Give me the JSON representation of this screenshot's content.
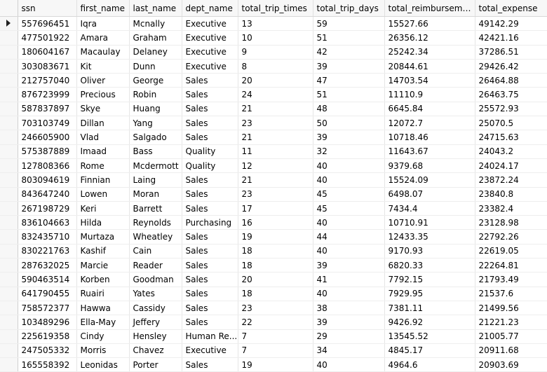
{
  "columns": [
    "ssn",
    "first_name",
    "last_name",
    "dept_name",
    "total_trip_times",
    "total_trip_days",
    "total_reimbursement",
    "total_expense"
  ],
  "selected_row_index": 0,
  "rows": [
    [
      "557696451",
      "Iqra",
      "Mcnally",
      "Executive",
      "13",
      "59",
      "15527.66",
      "49142.29"
    ],
    [
      "477501922",
      "Amara",
      "Graham",
      "Executive",
      "10",
      "51",
      "26356.12",
      "42421.16"
    ],
    [
      "180604167",
      "Macaulay",
      "Delaney",
      "Executive",
      "9",
      "42",
      "25242.34",
      "37286.51"
    ],
    [
      "303083671",
      "Kit",
      "Dunn",
      "Executive",
      "8",
      "39",
      "20844.61",
      "29426.42"
    ],
    [
      "212757040",
      "Oliver",
      "George",
      "Sales",
      "20",
      "47",
      "14703.54",
      "26464.88"
    ],
    [
      "876723999",
      "Precious",
      "Robin",
      "Sales",
      "24",
      "51",
      "11110.9",
      "26463.75"
    ],
    [
      "587837897",
      "Skye",
      "Huang",
      "Sales",
      "21",
      "48",
      "6645.84",
      "25572.93"
    ],
    [
      "703103749",
      "Dillan",
      "Yang",
      "Sales",
      "23",
      "50",
      "12072.7",
      "25070.5"
    ],
    [
      "246605900",
      "Vlad",
      "Salgado",
      "Sales",
      "21",
      "39",
      "10718.46",
      "24715.63"
    ],
    [
      "575387889",
      "Imaad",
      "Bass",
      "Quality",
      "11",
      "32",
      "11643.67",
      "24043.2"
    ],
    [
      "127808366",
      "Rome",
      "Mcdermott",
      "Quality",
      "12",
      "40",
      "9379.68",
      "24024.17"
    ],
    [
      "803094619",
      "Finnian",
      "Laing",
      "Sales",
      "21",
      "40",
      "15524.09",
      "23872.24"
    ],
    [
      "843647240",
      "Lowen",
      "Moran",
      "Sales",
      "23",
      "45",
      "6498.07",
      "23840.8"
    ],
    [
      "267198729",
      "Keri",
      "Barrett",
      "Sales",
      "17",
      "45",
      "7434.4",
      "23382.4"
    ],
    [
      "836104663",
      "Hilda",
      "Reynolds",
      "Purchasing",
      "16",
      "40",
      "10710.91",
      "23128.98"
    ],
    [
      "832435710",
      "Murtaza",
      "Wheatley",
      "Sales",
      "19",
      "44",
      "12433.35",
      "22792.26"
    ],
    [
      "830221763",
      "Kashif",
      "Cain",
      "Sales",
      "18",
      "40",
      "9170.93",
      "22619.05"
    ],
    [
      "287632025",
      "Marcie",
      "Reader",
      "Sales",
      "18",
      "39",
      "6820.33",
      "22264.81"
    ],
    [
      "590463514",
      "Korben",
      "Goodman",
      "Sales",
      "20",
      "41",
      "7792.15",
      "21793.49"
    ],
    [
      "641790455",
      "Ruairi",
      "Yates",
      "Sales",
      "18",
      "40",
      "7929.95",
      "21537.6"
    ],
    [
      "758572377",
      "Hawwa",
      "Cassidy",
      "Sales",
      "23",
      "38",
      "7381.11",
      "21499.56"
    ],
    [
      "103489296",
      "Ella-May",
      "Jeffery",
      "Sales",
      "22",
      "39",
      "9426.92",
      "21221.23"
    ],
    [
      "225619358",
      "Cindy",
      "Hensley",
      "Human Re...",
      "7",
      "29",
      "13545.52",
      "21005.77"
    ],
    [
      "247505332",
      "Morris",
      "Chavez",
      "Executive",
      "7",
      "34",
      "4845.17",
      "20911.68"
    ],
    [
      "165558392",
      "Leonidas",
      "Porter",
      "Sales",
      "19",
      "40",
      "4964.6",
      "20903.69"
    ]
  ]
}
